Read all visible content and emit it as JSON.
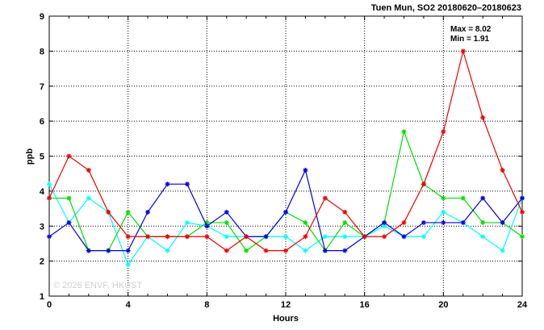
{
  "chart_data": {
    "type": "line",
    "title": "Tuen Mun, SO2 20180620–20180623",
    "xlabel": "Hours",
    "ylabel": "ppb",
    "xlim": [
      0,
      24
    ],
    "ylim": [
      1,
      9
    ],
    "xticks": [
      0,
      4,
      8,
      12,
      16,
      20,
      24
    ],
    "yticks": [
      1,
      2,
      3,
      4,
      5,
      6,
      7,
      8,
      9
    ],
    "grid": true,
    "stats": {
      "max_label": "Max = 8.02",
      "min_label": "Min = 1.91"
    },
    "watermark": "© 2026  ENVF, HKUST",
    "x": [
      0,
      1,
      2,
      3,
      4,
      5,
      6,
      7,
      8,
      9,
      10,
      11,
      12,
      13,
      14,
      15,
      16,
      17,
      18,
      19,
      20,
      21,
      22,
      23,
      24
    ],
    "series": [
      {
        "color": "#00ffff",
        "values": [
          4.2,
          3.1,
          3.8,
          3.4,
          1.9,
          2.7,
          2.3,
          3.1,
          3.0,
          2.7,
          2.7,
          2.7,
          2.7,
          2.3,
          2.7,
          2.7,
          2.7,
          3.0,
          2.7,
          2.7,
          3.4,
          3.1,
          2.7,
          2.3,
          3.8
        ]
      },
      {
        "color": "#00dd00",
        "values": [
          3.8,
          3.8,
          2.3,
          2.3,
          3.4,
          2.7,
          2.7,
          2.7,
          3.1,
          3.1,
          2.3,
          2.7,
          3.4,
          3.1,
          2.3,
          3.1,
          2.7,
          3.1,
          5.7,
          4.2,
          3.8,
          3.8,
          3.1,
          3.1,
          2.7
        ]
      },
      {
        "color": "#0000dd",
        "values": [
          2.7,
          3.1,
          2.3,
          2.3,
          2.3,
          3.4,
          4.2,
          4.2,
          3.0,
          3.4,
          2.7,
          2.7,
          3.4,
          4.6,
          2.3,
          2.3,
          2.7,
          3.1,
          2.7,
          3.1,
          3.1,
          3.1,
          3.8,
          3.1,
          3.8
        ]
      },
      {
        "color": "#ee0000",
        "values": [
          3.8,
          5.0,
          4.6,
          3.4,
          2.7,
          2.7,
          2.7,
          2.7,
          2.7,
          2.3,
          2.7,
          2.3,
          2.3,
          2.7,
          3.8,
          3.4,
          2.7,
          2.7,
          3.1,
          4.2,
          5.7,
          8.0,
          6.1,
          4.6,
          3.4
        ]
      }
    ]
  }
}
